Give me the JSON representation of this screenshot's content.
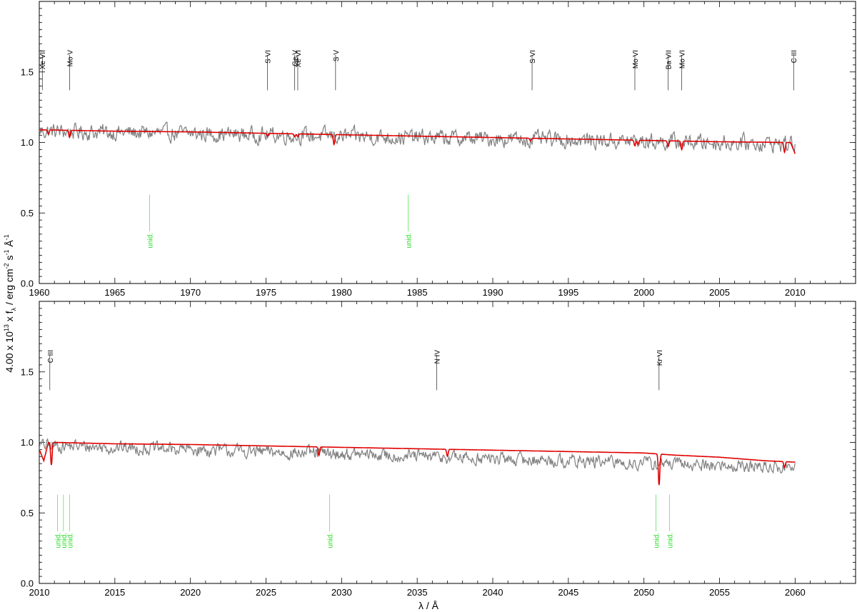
{
  "ylabel_parts": {
    "lead": "4.00 x 10",
    "exp1": "13",
    "x_f": " x f",
    "sub": "λ",
    "unit": " / erg cm",
    "exp2": "-2",
    "s": " s",
    "exp3": "-1",
    "ang": " Å",
    "exp4": "-1"
  },
  "xlabel": "λ / Å",
  "colors": {
    "observed": "#808080",
    "model": "#e00000",
    "line_id": "#000000",
    "unidentified": "#22dd22",
    "axes": "#000000"
  },
  "chart_data": [
    {
      "type": "line",
      "name": "upper-panel",
      "xlim": [
        1960,
        2014
      ],
      "ylim": [
        0,
        2.0
      ],
      "x_ticks": [
        1960,
        1965,
        1970,
        1975,
        1980,
        1985,
        1990,
        1995,
        2000,
        2005,
        2010
      ],
      "y_ticks": [
        0.0,
        0.5,
        1.0,
        1.5
      ],
      "y_tick_labels": [
        "0.0",
        "0.5",
        "1.0",
        "1.5"
      ],
      "observed": {
        "x_start": 1960,
        "x_end": 2010,
        "level_start": 1.08,
        "level_end": 0.99,
        "scatter": 0.055
      },
      "model": {
        "x": [
          1960,
          1965,
          1970,
          1975,
          1980,
          1985,
          1990,
          1995,
          2000,
          2005,
          2009.7,
          2010
        ],
        "y": [
          1.09,
          1.08,
          1.075,
          1.065,
          1.055,
          1.045,
          1.035,
          1.025,
          1.015,
          1.005,
          1.0,
          0.92
        ],
        "dips": [
          [
            1960.6,
            0.03
          ],
          [
            1962.0,
            0.05
          ],
          [
            1975.1,
            0.02
          ],
          [
            1976.9,
            0.02
          ],
          [
            1977.1,
            0.02
          ],
          [
            1979.5,
            0.07
          ],
          [
            1992.5,
            0.02
          ],
          [
            1999.4,
            0.04
          ],
          [
            1999.6,
            0.03
          ],
          [
            2001.6,
            0.04
          ],
          [
            2002.5,
            0.06
          ],
          [
            2009.3,
            0.07
          ]
        ]
      },
      "line_ids": [
        {
          "label": "Xe VII",
          "x": 1960.2
        },
        {
          "label": "Mo V",
          "x": 1962.0
        },
        {
          "label": "S VI",
          "x": 1975.1
        },
        {
          "label": "Ge V",
          "x": 1976.9
        },
        {
          "label": "Xe VI",
          "x": 1977.1
        },
        {
          "label": "S V",
          "x": 1979.6
        },
        {
          "label": "S VI",
          "x": 1992.6
        },
        {
          "label": "Mo VI",
          "x": 1999.4
        },
        {
          "label": "Ba VII",
          "x": 2001.6
        },
        {
          "label": "Mo VI",
          "x": 2002.5
        },
        {
          "label": "C III",
          "x": 2009.9
        }
      ],
      "unid": [
        {
          "label": "unid.",
          "x": 1967.3
        },
        {
          "label": "unid.",
          "x": 1984.4
        }
      ]
    },
    {
      "type": "line",
      "name": "lower-panel",
      "xlim": [
        2010,
        2064
      ],
      "ylim": [
        0,
        2.0
      ],
      "x_ticks": [
        2010,
        2015,
        2020,
        2025,
        2030,
        2035,
        2040,
        2045,
        2050,
        2055,
        2060
      ],
      "y_ticks": [
        0.0,
        0.5,
        1.0,
        1.5
      ],
      "y_tick_labels": [
        "0.0",
        "0.5",
        "1.0",
        "1.5"
      ],
      "observed": {
        "x_start": 2010,
        "x_end": 2060,
        "level_start": 0.98,
        "level_end": 0.82,
        "scatter": 0.045
      },
      "model": {
        "x": [
          2010,
          2010.3,
          2010.6,
          2011,
          2015,
          2020,
          2025,
          2030,
          2035,
          2040,
          2045,
          2050,
          2052,
          2055,
          2058,
          2060
        ],
        "y": [
          0.95,
          0.87,
          1.0,
          1.0,
          0.99,
          0.985,
          0.975,
          0.965,
          0.955,
          0.945,
          0.935,
          0.925,
          0.91,
          0.895,
          0.87,
          0.86
        ],
        "dips": [
          [
            2010.8,
            0.16
          ],
          [
            2028.5,
            0.06
          ],
          [
            2037.0,
            0.05
          ],
          [
            2051.0,
            0.22
          ],
          [
            2059.3,
            0.04
          ]
        ]
      },
      "line_ids": [
        {
          "label": "C III",
          "x": 2010.7
        },
        {
          "label": "N IV",
          "x": 2036.3
        },
        {
          "label": "Kr VI",
          "x": 2051.0
        }
      ],
      "unid": [
        {
          "label": "unid.",
          "x": 2011.2
        },
        {
          "label": "unid.",
          "x": 2011.6
        },
        {
          "label": "unid.",
          "x": 2012.0
        },
        {
          "label": "unid.",
          "x": 2029.2
        },
        {
          "label": "unid.",
          "x": 2050.8
        },
        {
          "label": "unid.",
          "x": 2051.7
        }
      ]
    }
  ]
}
